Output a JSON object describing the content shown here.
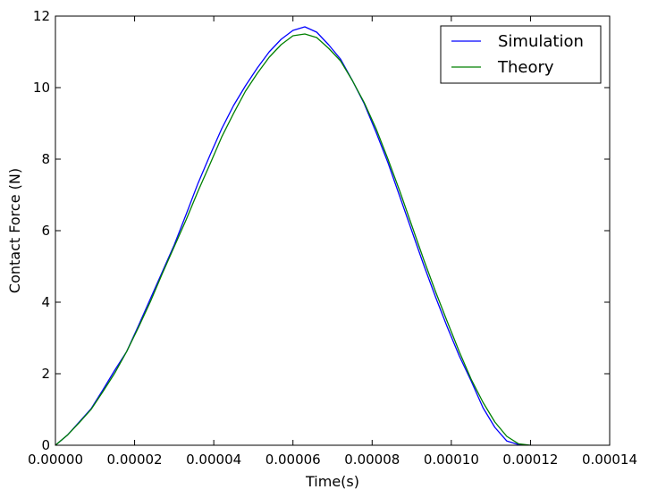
{
  "chart_data": {
    "type": "line",
    "title": "",
    "xlabel": "Time(s)",
    "ylabel": "Contact Force (N)",
    "xlim": [
      0,
      0.00014
    ],
    "ylim": [
      0,
      12
    ],
    "grid": false,
    "legend_position": "top-right",
    "x_ticks": [
      0,
      2e-05,
      4e-05,
      6e-05,
      8e-05,
      0.0001,
      0.00012,
      0.00014
    ],
    "x_tick_labels": [
      "0.00000",
      "0.00002",
      "0.00004",
      "0.00006",
      "0.00008",
      "0.00010",
      "0.00012",
      "0.00014"
    ],
    "y_ticks": [
      0,
      2,
      4,
      6,
      8,
      10,
      12
    ],
    "y_tick_labels": [
      "0",
      "2",
      "4",
      "6",
      "8",
      "10",
      "12"
    ],
    "series": [
      {
        "name": "Simulation",
        "color": "#0000ff",
        "x": [
          0,
          3e-06,
          6e-06,
          9e-06,
          1.2e-05,
          1.5e-05,
          1.8e-05,
          2.1e-05,
          2.4e-05,
          2.7e-05,
          3e-05,
          3.3e-05,
          3.6e-05,
          3.9e-05,
          4.2e-05,
          4.5e-05,
          4.8e-05,
          5.1e-05,
          5.4e-05,
          5.7e-05,
          6e-05,
          6.3e-05,
          6.6e-05,
          6.9e-05,
          7.2e-05,
          7.5e-05,
          7.8e-05,
          8.1e-05,
          8.4e-05,
          8.7e-05,
          9e-05,
          9.3e-05,
          9.6e-05,
          9.9e-05,
          0.000102,
          0.000105,
          0.000108,
          0.000111,
          0.000114,
          0.000117,
          0.0001195
        ],
        "y": [
          0,
          0.28,
          0.65,
          1.02,
          1.55,
          2.1,
          2.62,
          3.35,
          4.1,
          4.85,
          5.6,
          6.45,
          7.32,
          8.1,
          8.85,
          9.5,
          10.05,
          10.55,
          11.0,
          11.35,
          11.6,
          11.7,
          11.55,
          11.2,
          10.8,
          10.2,
          9.55,
          8.75,
          7.9,
          6.95,
          6.0,
          5.05,
          4.15,
          3.3,
          2.5,
          1.8,
          1.05,
          0.5,
          0.12,
          0.02,
          0
        ]
      },
      {
        "name": "Theory",
        "color": "#008000",
        "x": [
          0,
          3e-06,
          6e-06,
          9e-06,
          1.2e-05,
          1.5e-05,
          1.8e-05,
          2.1e-05,
          2.4e-05,
          2.7e-05,
          3e-05,
          3.3e-05,
          3.6e-05,
          3.9e-05,
          4.2e-05,
          4.5e-05,
          4.8e-05,
          5.1e-05,
          5.4e-05,
          5.7e-05,
          6e-05,
          6.3e-05,
          6.6e-05,
          6.9e-05,
          7.2e-05,
          7.5e-05,
          7.8e-05,
          8.1e-05,
          8.4e-05,
          8.7e-05,
          9e-05,
          9.3e-05,
          9.6e-05,
          9.9e-05,
          0.000102,
          0.000105,
          0.000108,
          0.000111,
          0.000114,
          0.000117,
          0.00012
        ],
        "y": [
          0,
          0.28,
          0.63,
          1.0,
          1.5,
          2.02,
          2.62,
          3.3,
          4.02,
          4.8,
          5.55,
          6.3,
          7.1,
          7.85,
          8.62,
          9.28,
          9.9,
          10.4,
          10.85,
          11.2,
          11.45,
          11.5,
          11.4,
          11.1,
          10.75,
          10.2,
          9.58,
          8.85,
          8.0,
          7.1,
          6.15,
          5.2,
          4.3,
          3.45,
          2.62,
          1.85,
          1.2,
          0.65,
          0.25,
          0.04,
          0
        ]
      }
    ]
  }
}
